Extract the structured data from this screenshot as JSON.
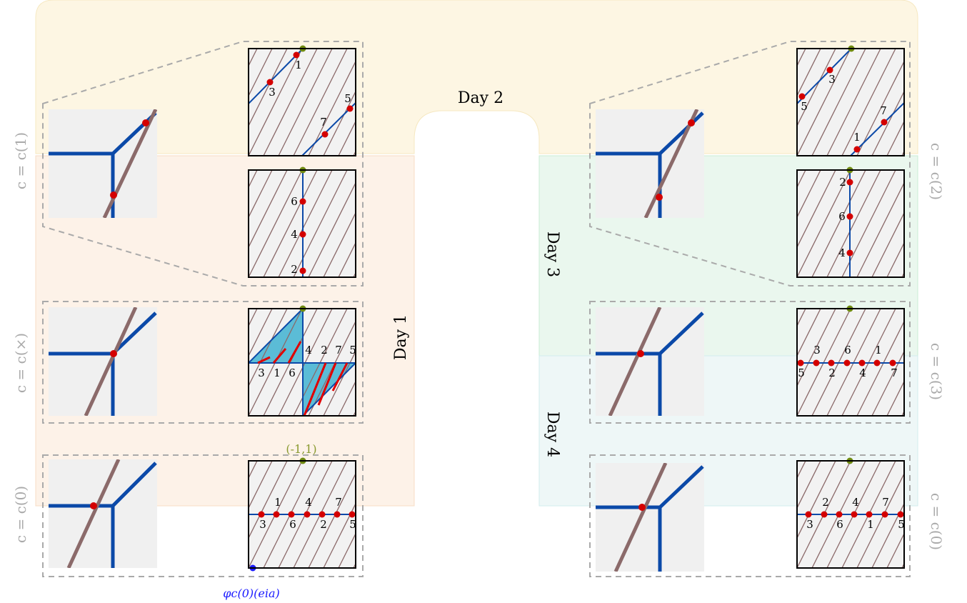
{
  "labels": {
    "day1": "Day 1",
    "day2": "Day 2",
    "day3": "Day 3",
    "day4": "Day 4",
    "c_one": "c = c(1)",
    "c_cross": "c = c(×)",
    "c_zero_left": "c = c(0)",
    "c_two": "c = c(2)",
    "c_three": "c = c(3)",
    "c_zero_right": "c = c(0)",
    "corner_point": "(-1,1)",
    "phi_label": "φc(0)(eia)"
  },
  "square_points": {
    "left_top_a": [
      "1",
      "3",
      "7",
      "5"
    ],
    "left_top_b": [
      "6",
      "4",
      "2"
    ],
    "left_mid_top": [
      "4",
      "2",
      "7",
      "5"
    ],
    "left_mid_bottom": [
      "3",
      "1",
      "6"
    ],
    "left_bottom_top": [
      "1",
      "4",
      "7"
    ],
    "left_bottom_bottom": [
      "3",
      "6",
      "2",
      "5"
    ],
    "right_top_a": [
      "3",
      "5",
      "7",
      "1"
    ],
    "right_top_b": [
      "2",
      "6",
      "4"
    ],
    "right_mid_top": [
      "3",
      "6",
      "1"
    ],
    "right_mid_bottom": [
      "5",
      "2",
      "4",
      "7"
    ],
    "right_bottom_top": [
      "2",
      "4",
      "7"
    ],
    "right_bottom_bottom": [
      "3",
      "6",
      "1",
      "5"
    ]
  },
  "colors": {
    "day_region_yellow": "#fdf6e3",
    "day_region_orange": "#fdf1e6",
    "day_region_green": "#eaf7ee",
    "day_region_teal": "#eef7f7",
    "blue_line": "#0b49a8",
    "hatch": "#8b6a6a",
    "red_point": "#d40000",
    "olive_point": "#6f8a10",
    "phi_blue": "#1a1aff",
    "cyan_fill": "#5bbcd6"
  }
}
